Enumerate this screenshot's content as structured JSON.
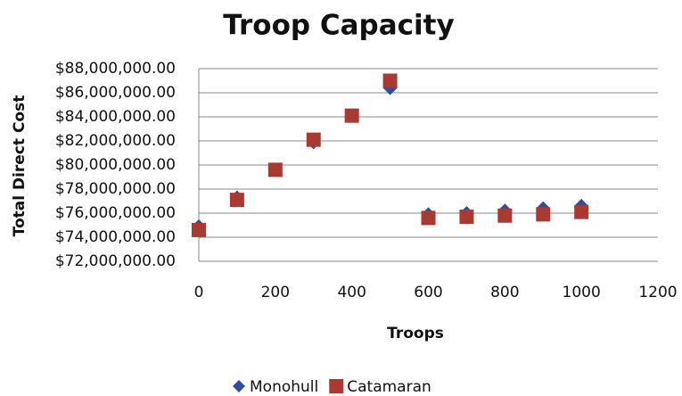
{
  "chart_data": {
    "type": "scatter",
    "title": "Troop Capacity",
    "x_label": "Troops",
    "y_label": "Total Direct Cost",
    "x": [
      0,
      100,
      200,
      300,
      400,
      500,
      600,
      700,
      800,
      900,
      1000
    ],
    "series": [
      {
        "name": "Monohull",
        "color": "#2e4f9a",
        "marker": "diamond",
        "values": [
          74900000,
          77300000,
          79600000,
          81900000,
          84100000,
          86400000,
          75900000,
          76000000,
          76200000,
          76400000,
          76600000
        ]
      },
      {
        "name": "Catamaran",
        "color": "#a83a32",
        "marker": "square",
        "values": [
          74600000,
          77100000,
          79600000,
          82100000,
          84100000,
          87000000,
          75600000,
          75700000,
          75800000,
          75900000,
          76100000
        ]
      }
    ],
    "xlim": [
      0,
      1200
    ],
    "xticks": [
      0,
      200,
      400,
      600,
      800,
      1000,
      1200
    ],
    "ylim": [
      72000000,
      88000000
    ],
    "yticks": [
      {
        "value": 72000000,
        "label": "$72,000,000.00"
      },
      {
        "value": 74000000,
        "label": "$74,000,000.00"
      },
      {
        "value": 76000000,
        "label": "$76,000,000.00"
      },
      {
        "value": 78000000,
        "label": "$78,000,000.00"
      },
      {
        "value": 80000000,
        "label": "$80,000,000.00"
      },
      {
        "value": 82000000,
        "label": "$82,000,000.00"
      },
      {
        "value": 84000000,
        "label": "$84,000,000.00"
      },
      {
        "value": 86000000,
        "label": "$86,000,000.00"
      },
      {
        "value": 88000000,
        "label": "$88,000,000.00"
      }
    ],
    "grid": true,
    "legend": "bottom"
  }
}
